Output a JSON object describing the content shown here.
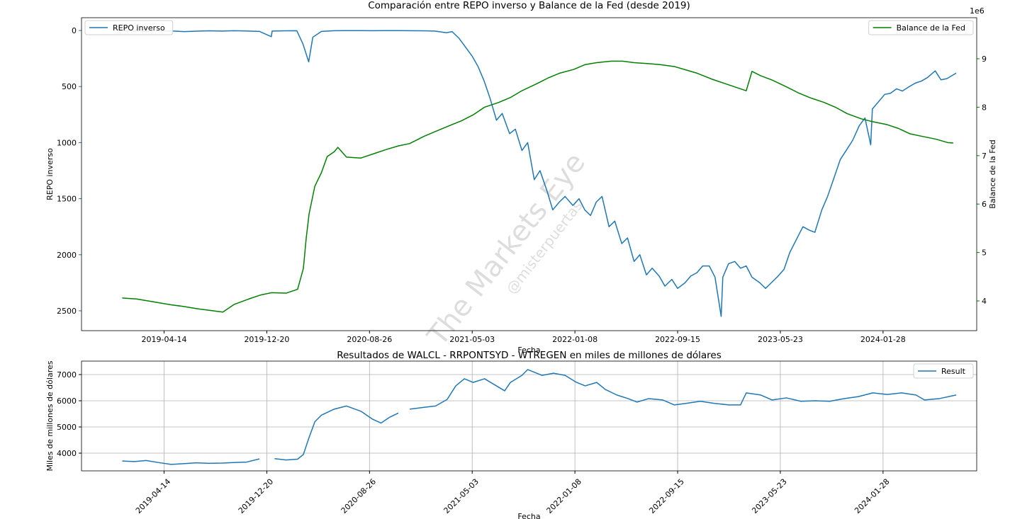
{
  "chart_data": [
    {
      "type": "line",
      "title": "Comparación entre REPO inverso y Balance de la Fed (desde 2019)",
      "xlabel": "Fecha",
      "ylabel": "REPO inverso",
      "y2label": "Balance de la Fed",
      "y2_offset_label": "1e6",
      "watermark": "The Markets Eye",
      "watermark_sub": "@misterpuertas",
      "color_axes": true,
      "grid": false,
      "xlim": [
        "2018-09-25",
        "2024-09-12"
      ],
      "xticks": [
        "2019-04-14",
        "2019-12-20",
        "2020-08-26",
        "2021-05-03",
        "2022-01-08",
        "2022-09-15",
        "2023-05-23",
        "2024-01-28"
      ],
      "ylim": [
        2677,
        -114
      ],
      "yticks": [
        0,
        500,
        1000,
        1500,
        2000,
        2500
      ],
      "y2lim": [
        3.386,
        9.848
      ],
      "y2ticks": [
        4,
        5,
        6,
        7,
        8,
        9
      ],
      "series": [
        {
          "name": "REPO inverso",
          "color": "#1f77b4",
          "axis": "y",
          "legend": "upper left",
          "x": [
            "2019-01-02",
            "2019-02-01",
            "2019-03-01",
            "2019-04-01",
            "2019-05-01",
            "2019-06-03",
            "2019-07-01",
            "2019-08-01",
            "2019-09-03",
            "2019-10-01",
            "2019-11-01",
            "2019-12-02",
            "2019-12-31",
            "2020-01-02",
            "2020-02-03",
            "2020-03-02",
            "2020-03-17",
            "2020-03-31",
            "2020-04-10",
            "2020-05-01",
            "2020-06-01",
            "2020-07-01",
            "2020-08-03",
            "2020-09-01",
            "2020-10-01",
            "2020-11-02",
            "2020-12-01",
            "2021-01-04",
            "2021-02-01",
            "2021-03-01",
            "2021-03-15",
            "2021-04-01",
            "2021-04-15",
            "2021-05-03",
            "2021-05-17",
            "2021-06-01",
            "2021-06-15",
            "2021-07-01",
            "2021-07-15",
            "2021-08-02",
            "2021-08-16",
            "2021-09-01",
            "2021-09-15",
            "2021-10-01",
            "2021-10-15",
            "2021-11-01",
            "2021-11-15",
            "2021-12-01",
            "2021-12-15",
            "2022-01-03",
            "2022-01-18",
            "2022-02-01",
            "2022-02-15",
            "2022-03-01",
            "2022-03-15",
            "2022-04-01",
            "2022-04-15",
            "2022-05-02",
            "2022-05-16",
            "2022-06-01",
            "2022-06-15",
            "2022-07-01",
            "2022-07-15",
            "2022-08-01",
            "2022-08-15",
            "2022-09-01",
            "2022-09-15",
            "2022-10-03",
            "2022-10-17",
            "2022-11-01",
            "2022-11-15",
            "2022-12-01",
            "2022-12-15",
            "2022-12-30",
            "2023-01-03",
            "2023-01-17",
            "2023-02-01",
            "2023-02-15",
            "2023-03-01",
            "2023-03-15",
            "2023-04-03",
            "2023-04-17",
            "2023-05-01",
            "2023-05-15",
            "2023-06-01",
            "2023-06-15",
            "2023-07-03",
            "2023-07-17",
            "2023-08-01",
            "2023-08-15",
            "2023-09-01",
            "2023-09-15",
            "2023-10-02",
            "2023-10-16",
            "2023-11-01",
            "2023-11-15",
            "2023-12-01",
            "2023-12-15",
            "2023-12-29",
            "2024-01-02",
            "2024-01-16",
            "2024-02-01",
            "2024-02-15",
            "2024-03-01",
            "2024-03-15",
            "2024-04-01",
            "2024-04-15",
            "2024-05-01",
            "2024-05-15",
            "2024-06-03",
            "2024-06-17",
            "2024-07-01",
            "2024-07-15",
            "2024-07-24"
          ],
          "values": [
            5,
            3,
            8,
            2,
            4,
            10,
            6,
            3,
            5,
            2,
            4,
            8,
            55,
            5,
            3,
            2,
            120,
            280,
            60,
            8,
            2,
            1,
            1,
            2,
            1,
            1,
            2,
            3,
            5,
            20,
            10,
            70,
            140,
            230,
            320,
            450,
            600,
            800,
            740,
            920,
            880,
            1070,
            1000,
            1330,
            1250,
            1430,
            1600,
            1530,
            1480,
            1560,
            1500,
            1600,
            1650,
            1530,
            1480,
            1750,
            1700,
            1900,
            1850,
            2060,
            2000,
            2180,
            2120,
            2190,
            2280,
            2220,
            2300,
            2250,
            2190,
            2160,
            2100,
            2100,
            2200,
            2550,
            2200,
            2080,
            2060,
            2120,
            2100,
            2200,
            2250,
            2300,
            2250,
            2200,
            2130,
            1980,
            1850,
            1750,
            1780,
            1800,
            1600,
            1480,
            1300,
            1150,
            1060,
            980,
            850,
            780,
            1020,
            700,
            640,
            570,
            560,
            520,
            540,
            500,
            470,
            450,
            420,
            360,
            440,
            430,
            400,
            380
          ]
        },
        {
          "name": "Balance de la Fed",
          "color": "#008000",
          "axis": "y2",
          "legend": "upper right",
          "x": [
            "2019-01-02",
            "2019-02-06",
            "2019-03-06",
            "2019-04-03",
            "2019-05-01",
            "2019-06-05",
            "2019-07-03",
            "2019-08-07",
            "2019-09-04",
            "2019-10-02",
            "2019-11-06",
            "2019-12-04",
            "2020-01-01",
            "2020-02-05",
            "2020-03-04",
            "2020-03-18",
            "2020-03-25",
            "2020-04-01",
            "2020-04-15",
            "2020-05-01",
            "2020-05-15",
            "2020-06-01",
            "2020-06-10",
            "2020-07-01",
            "2020-08-05",
            "2020-09-02",
            "2020-10-07",
            "2020-11-04",
            "2020-12-02",
            "2021-01-06",
            "2021-02-03",
            "2021-03-03",
            "2021-04-07",
            "2021-05-05",
            "2021-06-02",
            "2021-07-07",
            "2021-08-04",
            "2021-09-01",
            "2021-10-06",
            "2021-11-03",
            "2021-12-01",
            "2022-01-05",
            "2022-02-02",
            "2022-03-02",
            "2022-04-06",
            "2022-05-04",
            "2022-06-01",
            "2022-07-06",
            "2022-08-03",
            "2022-09-07",
            "2022-10-05",
            "2022-11-02",
            "2022-12-07",
            "2023-01-04",
            "2023-02-01",
            "2023-03-01",
            "2023-03-15",
            "2023-04-05",
            "2023-05-03",
            "2023-06-07",
            "2023-07-05",
            "2023-08-02",
            "2023-09-06",
            "2023-10-04",
            "2023-11-01",
            "2023-12-06",
            "2024-01-03",
            "2024-02-07",
            "2024-03-06",
            "2024-04-03",
            "2024-05-01",
            "2024-06-05",
            "2024-07-03",
            "2024-07-17"
          ],
          "values": [
            4.06,
            4.04,
            4.0,
            3.96,
            3.92,
            3.88,
            3.84,
            3.8,
            3.77,
            3.93,
            4.04,
            4.12,
            4.17,
            4.16,
            4.24,
            4.67,
            5.3,
            5.8,
            6.37,
            6.65,
            6.98,
            7.08,
            7.17,
            6.97,
            6.95,
            7.03,
            7.13,
            7.2,
            7.25,
            7.4,
            7.5,
            7.6,
            7.72,
            7.84,
            8.0,
            8.1,
            8.2,
            8.34,
            8.48,
            8.6,
            8.7,
            8.78,
            8.88,
            8.92,
            8.95,
            8.95,
            8.92,
            8.9,
            8.88,
            8.84,
            8.77,
            8.7,
            8.58,
            8.5,
            8.42,
            8.34,
            8.74,
            8.65,
            8.56,
            8.42,
            8.3,
            8.2,
            8.1,
            8.0,
            7.87,
            7.76,
            7.7,
            7.64,
            7.56,
            7.45,
            7.4,
            7.34,
            7.27,
            7.26
          ]
        }
      ]
    },
    {
      "type": "line",
      "title": "Resultados de WALCL - RRPONTSYD - WTREGEN en miles de millones de dólares",
      "xlabel": "Fecha",
      "ylabel": "Miles de millones de dólares",
      "grid": true,
      "xtick_rotation": 45,
      "xlim": [
        "2018-09-25",
        "2024-09-12"
      ],
      "xticks": [
        "2019-04-14",
        "2019-12-20",
        "2020-08-26",
        "2021-05-03",
        "2022-01-08",
        "2022-09-15",
        "2023-05-23",
        "2024-01-28"
      ],
      "ylim": [
        3324,
        7514
      ],
      "yticks": [
        4000,
        5000,
        6000,
        7000
      ],
      "series": [
        {
          "name": "Result",
          "color": "#1f77b4",
          "axis": "y",
          "legend": "upper right",
          "x": [
            "2019-01-02",
            "2019-02-01",
            "2019-03-01",
            "2019-04-01",
            "2019-05-01",
            "2019-06-03",
            "2019-07-01",
            "2019-08-01",
            "2019-09-03",
            "2019-10-01",
            "2019-11-01",
            "2019-12-02",
            "2019-12-20",
            "2020-01-08",
            "2020-02-05",
            "2020-03-04",
            "2020-03-18",
            "2020-04-01",
            "2020-04-15",
            "2020-05-01",
            "2020-06-01",
            "2020-07-01",
            "2020-08-05",
            "2020-09-02",
            "2020-09-23",
            "2020-10-14",
            "2020-11-04",
            "2020-11-18",
            "2020-12-02",
            "2021-01-06",
            "2021-02-03",
            "2021-03-03",
            "2021-03-24",
            "2021-04-14",
            "2021-05-05",
            "2021-06-02",
            "2021-07-21",
            "2021-08-04",
            "2021-09-01",
            "2021-09-15",
            "2021-10-20",
            "2021-11-17",
            "2021-12-15",
            "2022-01-12",
            "2022-02-02",
            "2022-03-02",
            "2022-03-23",
            "2022-04-20",
            "2022-05-18",
            "2022-06-08",
            "2022-07-06",
            "2022-08-10",
            "2022-09-07",
            "2022-10-05",
            "2022-11-09",
            "2022-12-14",
            "2023-01-18",
            "2023-02-15",
            "2023-03-01",
            "2023-04-05",
            "2023-05-03",
            "2023-06-07",
            "2023-07-12",
            "2023-08-16",
            "2023-09-20",
            "2023-10-25",
            "2023-11-29",
            "2024-01-03",
            "2024-02-07",
            "2024-03-13",
            "2024-04-17",
            "2024-05-08",
            "2024-06-12",
            "2024-07-24"
          ],
          "values": [
            3700,
            3680,
            3720,
            3640,
            3570,
            3600,
            3630,
            3610,
            3620,
            3640,
            3660,
            3780,
            null,
            3790,
            3740,
            3770,
            3950,
            4600,
            5200,
            5450,
            5680,
            5800,
            5600,
            5300,
            5150,
            5370,
            5530,
            null,
            5680,
            5750,
            5800,
            6050,
            6570,
            6840,
            6700,
            6840,
            6380,
            6700,
            6970,
            7190,
            6970,
            7050,
            6970,
            6700,
            6570,
            6700,
            6430,
            6220,
            6080,
            5950,
            6080,
            6030,
            5840,
            5900,
            5980,
            5900,
            5840,
            5840,
            6300,
            6220,
            6030,
            6110,
            5980,
            6000,
            5980,
            6080,
            6160,
            6300,
            6240,
            6300,
            6220,
            6030,
            6080,
            6220
          ]
        }
      ]
    }
  ]
}
